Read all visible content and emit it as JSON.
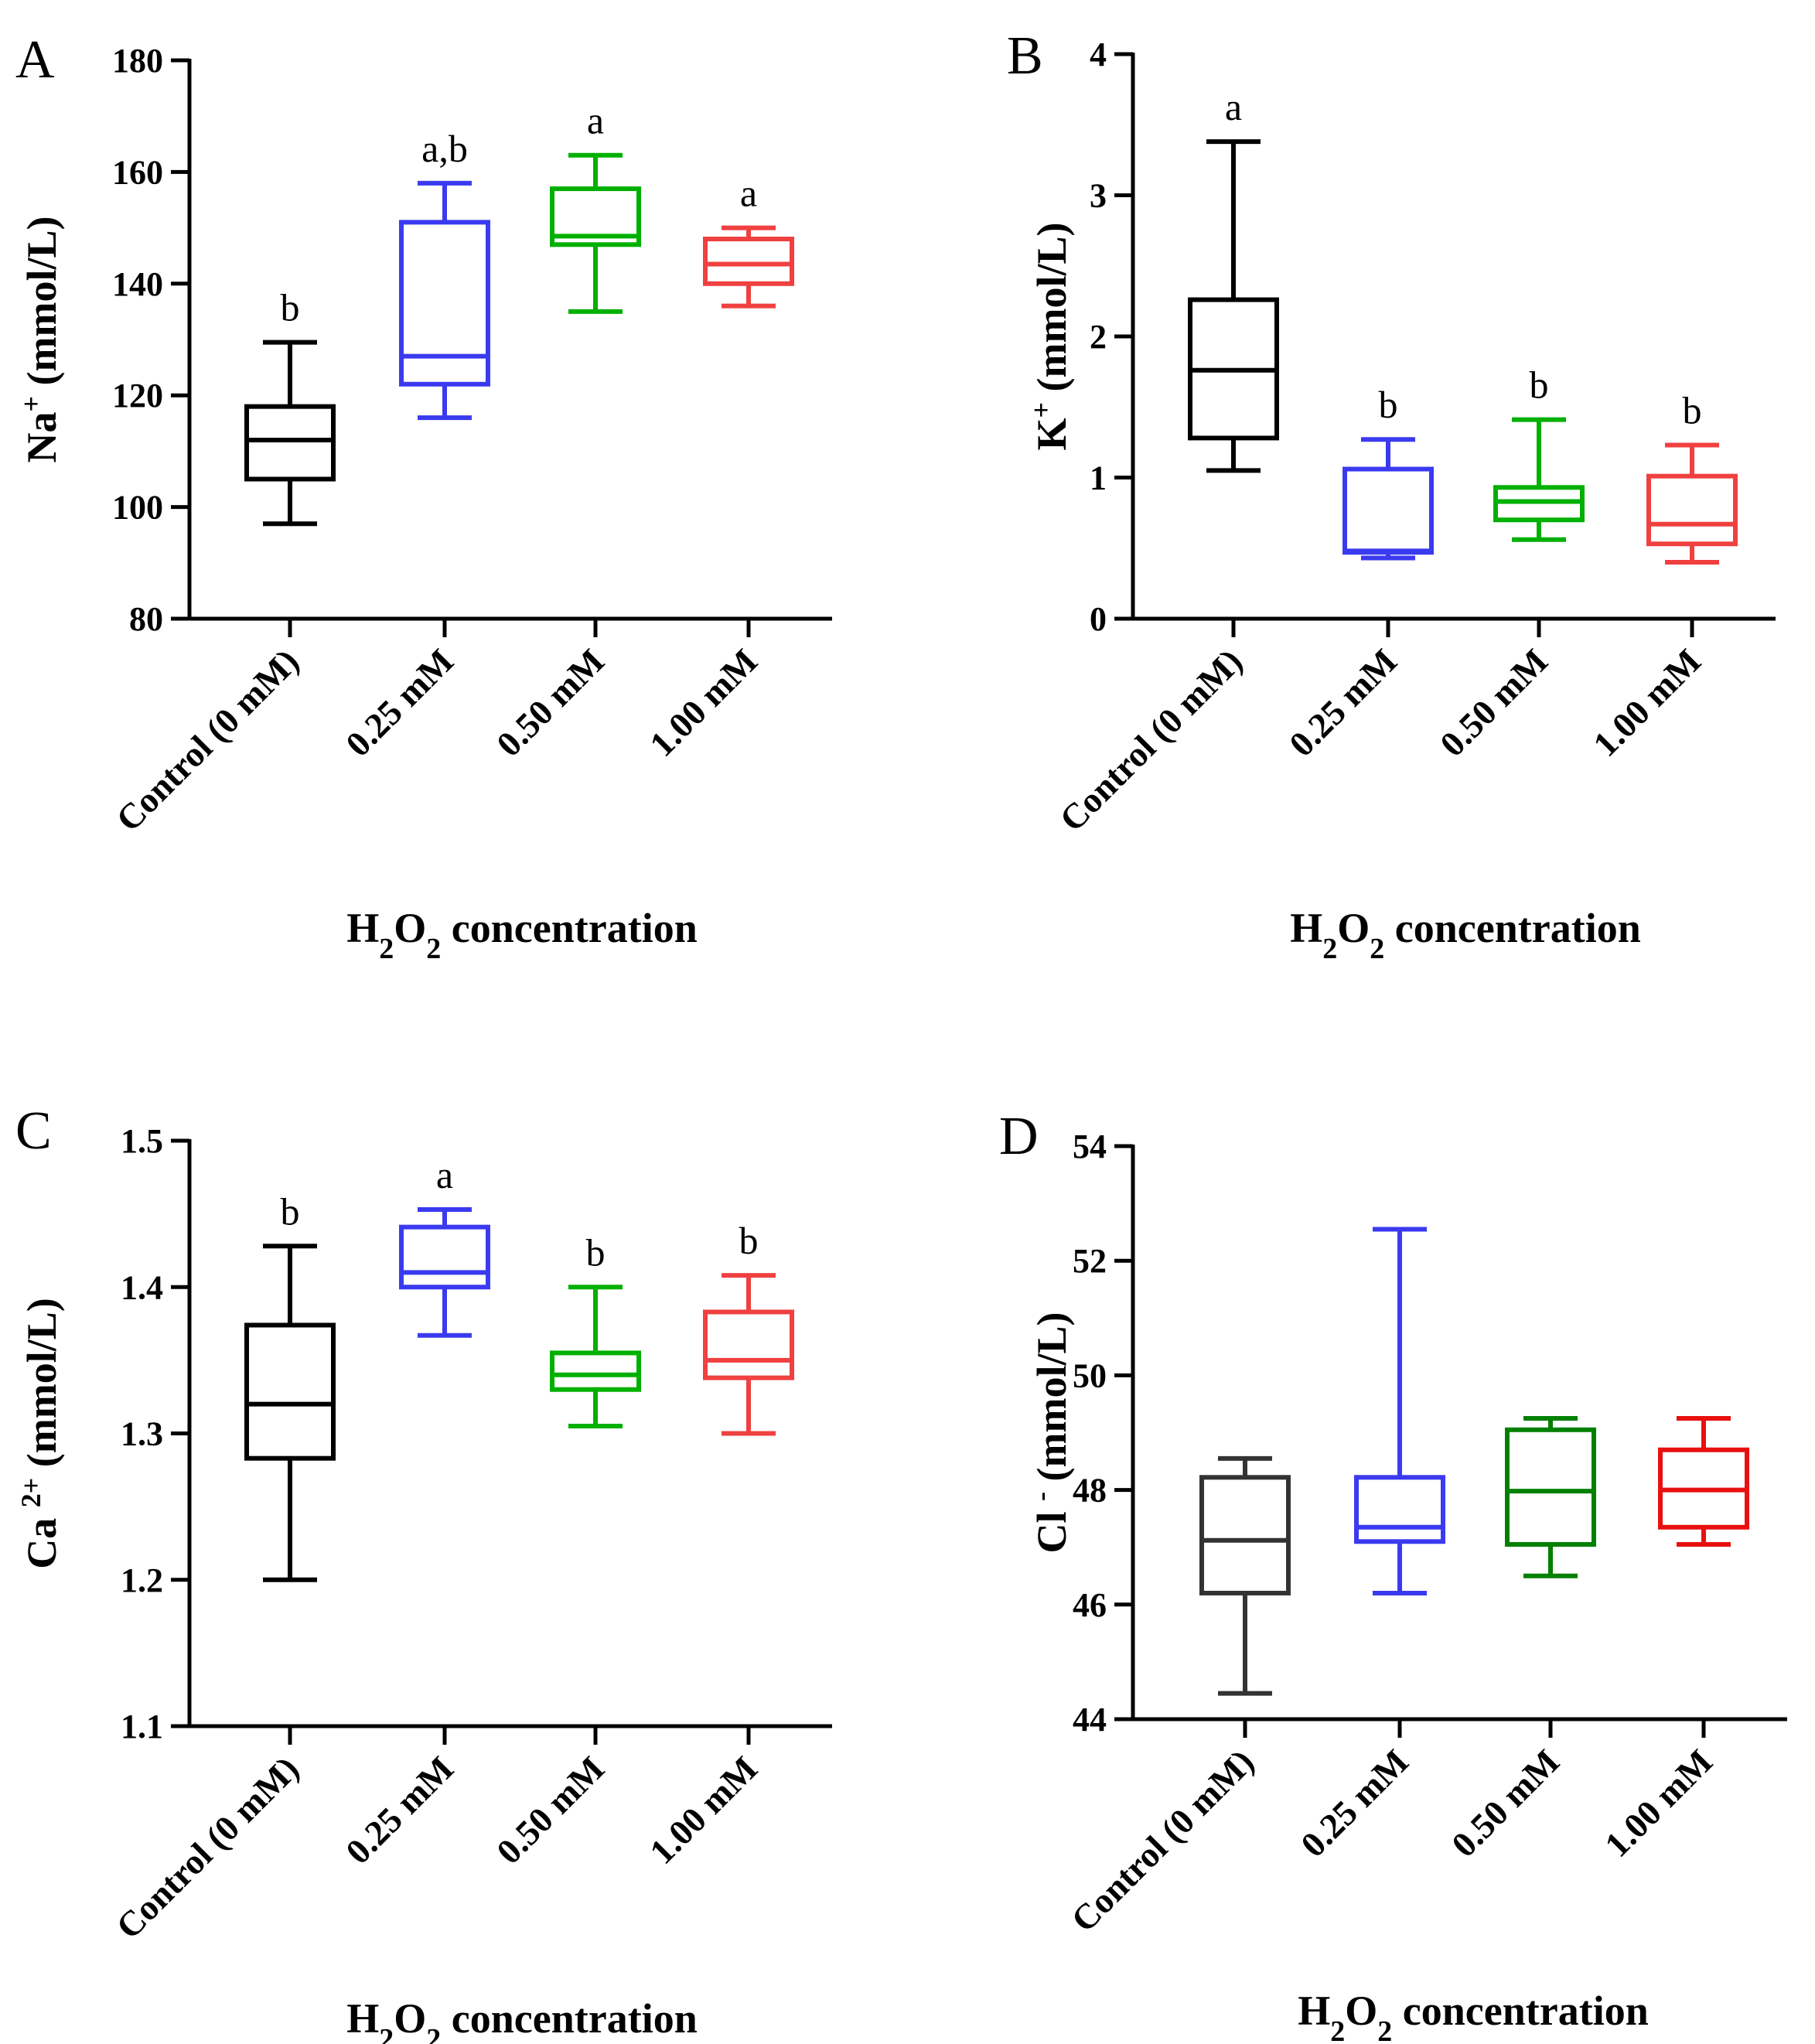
{
  "chart_data": [
    {
      "panel": "A",
      "type": "box",
      "ylabel": {
        "base": "Na",
        "sup": "+",
        "rest": " (mmol/L)"
      },
      "xlabel": {
        "pre": "H",
        "sub1": "2",
        "mid": "O",
        "sub2": "2",
        "post": " concentration"
      },
      "categories": [
        "Control (0 mM)",
        "0.25 mM",
        "0.50 mM",
        "1.00 mM"
      ],
      "colors": [
        "#000000",
        "#3a3af0",
        "#00b000",
        "#f04040"
      ],
      "ylim": [
        80,
        180
      ],
      "yticks": [
        80,
        100,
        120,
        140,
        160,
        180
      ],
      "ytick_labels": [
        "80",
        "100",
        "120",
        "140",
        "160",
        "180"
      ],
      "boxes": [
        {
          "min": 97,
          "q1": 105,
          "median": 112,
          "q3": 118,
          "max": 129.5
        },
        {
          "min": 116,
          "q1": 122,
          "median": 127,
          "q3": 151,
          "max": 158
        },
        {
          "min": 135,
          "q1": 147,
          "median": 148.5,
          "q3": 157,
          "max": 163
        },
        {
          "min": 136,
          "q1": 140,
          "median": 143.5,
          "q3": 148,
          "max": 150
        }
      ],
      "significance": [
        "b",
        "a,b",
        "a",
        "a"
      ]
    },
    {
      "panel": "B",
      "type": "box",
      "ylabel": {
        "base": "K",
        "sup": "+",
        "rest": " (mmol/L)"
      },
      "xlabel": {
        "pre": "H",
        "sub1": "2",
        "mid": "O",
        "sub2": "2",
        "post": " concentration"
      },
      "categories": [
        "Control (0 mM)",
        "0.25 mM",
        "0.50 mM",
        "1.00 mM"
      ],
      "colors": [
        "#000000",
        "#3a3af0",
        "#00b000",
        "#f04040"
      ],
      "ylim": [
        0,
        4
      ],
      "yticks": [
        0,
        1,
        2,
        3,
        4
      ],
      "ytick_labels": [
        "0",
        "1",
        "2",
        "3",
        "4"
      ],
      "boxes": [
        {
          "min": 1.05,
          "q1": 1.28,
          "median": 1.76,
          "q3": 2.26,
          "max": 3.38
        },
        {
          "min": 0.43,
          "q1": 0.47,
          "median": 0.48,
          "q3": 1.06,
          "max": 1.27
        },
        {
          "min": 0.56,
          "q1": 0.7,
          "median": 0.83,
          "q3": 0.93,
          "max": 1.41
        },
        {
          "min": 0.4,
          "q1": 0.53,
          "median": 0.67,
          "q3": 1.01,
          "max": 1.23
        }
      ],
      "significance": [
        "a",
        "b",
        "b",
        "b"
      ]
    },
    {
      "panel": "C",
      "type": "box",
      "ylabel": {
        "base": "Ca ",
        "sup": "2+",
        "rest": " (mmol/L)"
      },
      "xlabel": {
        "pre": "H",
        "sub1": "2",
        "mid": "O",
        "sub2": "2",
        "post": " concentration"
      },
      "categories": [
        "Control (0 mM)",
        "0.25 mM",
        "0.50 mM",
        "1.00 mM"
      ],
      "colors": [
        "#000000",
        "#3a3af0",
        "#00b000",
        "#f04040"
      ],
      "ylim": [
        1.1,
        1.5
      ],
      "yticks": [
        1.1,
        1.2,
        1.3,
        1.4,
        1.5
      ],
      "ytick_labels": [
        "1.1",
        "1.2",
        "1.3",
        "1.4",
        "1.5"
      ],
      "boxes": [
        {
          "min": 1.2,
          "q1": 1.283,
          "median": 1.32,
          "q3": 1.374,
          "max": 1.428
        },
        {
          "min": 1.367,
          "q1": 1.4,
          "median": 1.41,
          "q3": 1.441,
          "max": 1.453
        },
        {
          "min": 1.305,
          "q1": 1.33,
          "median": 1.34,
          "q3": 1.355,
          "max": 1.4
        },
        {
          "min": 1.3,
          "q1": 1.338,
          "median": 1.35,
          "q3": 1.383,
          "max": 1.408
        }
      ],
      "significance": [
        "b",
        "a",
        "b",
        "b"
      ]
    },
    {
      "panel": "D",
      "type": "box",
      "ylabel": {
        "base": "Cl ",
        "sup": "-",
        "rest": " (mmol/L)"
      },
      "xlabel": {
        "pre": "H",
        "sub1": "2",
        "mid": "O",
        "sub2": "2",
        "post": " concentration"
      },
      "categories": [
        "Control (0 mM)",
        "0.25 mM",
        "0.50 mM",
        "1.00 mM"
      ],
      "colors": [
        "#333333",
        "#3a3af0",
        "#008000",
        "#e81010"
      ],
      "ylim": [
        44,
        54
      ],
      "yticks": [
        44,
        46,
        48,
        50,
        52,
        54
      ],
      "ytick_labels": [
        "44",
        "46",
        "48",
        "50",
        "52",
        "54"
      ],
      "boxes": [
        {
          "min": 44.45,
          "q1": 46.2,
          "median": 47.12,
          "q3": 48.22,
          "max": 48.55
        },
        {
          "min": 46.2,
          "q1": 47.1,
          "median": 47.35,
          "q3": 48.22,
          "max": 52.55
        },
        {
          "min": 46.5,
          "q1": 47.05,
          "median": 47.98,
          "q3": 49.05,
          "max": 49.25
        },
        {
          "min": 47.05,
          "q1": 47.35,
          "median": 48.0,
          "q3": 48.7,
          "max": 49.25
        }
      ],
      "significance": [
        "",
        "",
        "",
        ""
      ]
    }
  ]
}
